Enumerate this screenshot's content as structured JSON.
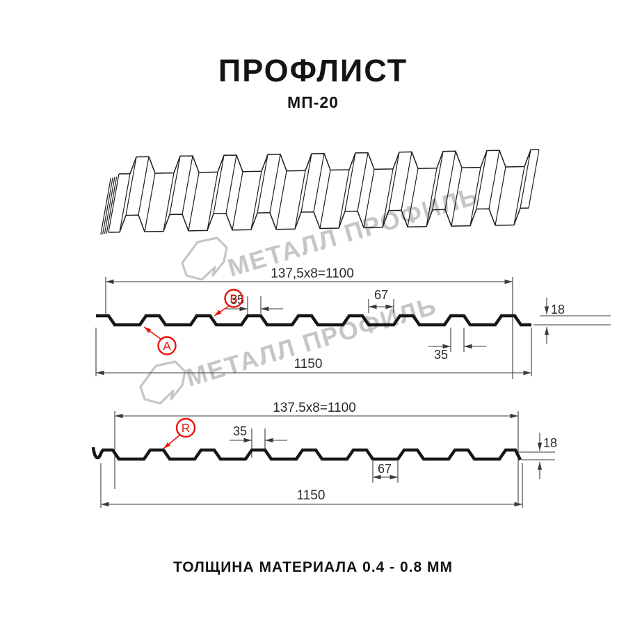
{
  "title": "ПРОФЛИСТ",
  "subtitle": "МП-20",
  "footer": {
    "text": "ТОЛЩИНА МАТЕРИАЛА 0.4 - 0.8 ММ"
  },
  "watermark": {
    "brand": "МЕТАЛЛ ПРОФИЛЬ"
  },
  "colors": {
    "background": "#ffffff",
    "ink": "#161616",
    "dim_line": "#3a3a3a",
    "red_accent": "#e8130c",
    "watermark_gray": "#c6c6c6"
  },
  "views": {
    "top_3d": {
      "description": "3d-corrugated-sheet-wireframe"
    },
    "section_a": {
      "dim_width_modules": "137,5x8=1100",
      "dim_rib_top": "35",
      "dim_flange": "67",
      "dim_rib_bottom": "35",
      "dim_height": "18",
      "dim_total_width": "1150",
      "labels": {
        "a": "A",
        "b": "B"
      }
    },
    "section_r": {
      "dim_width_modules": "137.5x8=1100",
      "dim_rib_top": "35",
      "dim_flange": "67",
      "dim_height": "18",
      "dim_total_width": "1150",
      "labels": {
        "r": "R"
      }
    }
  }
}
